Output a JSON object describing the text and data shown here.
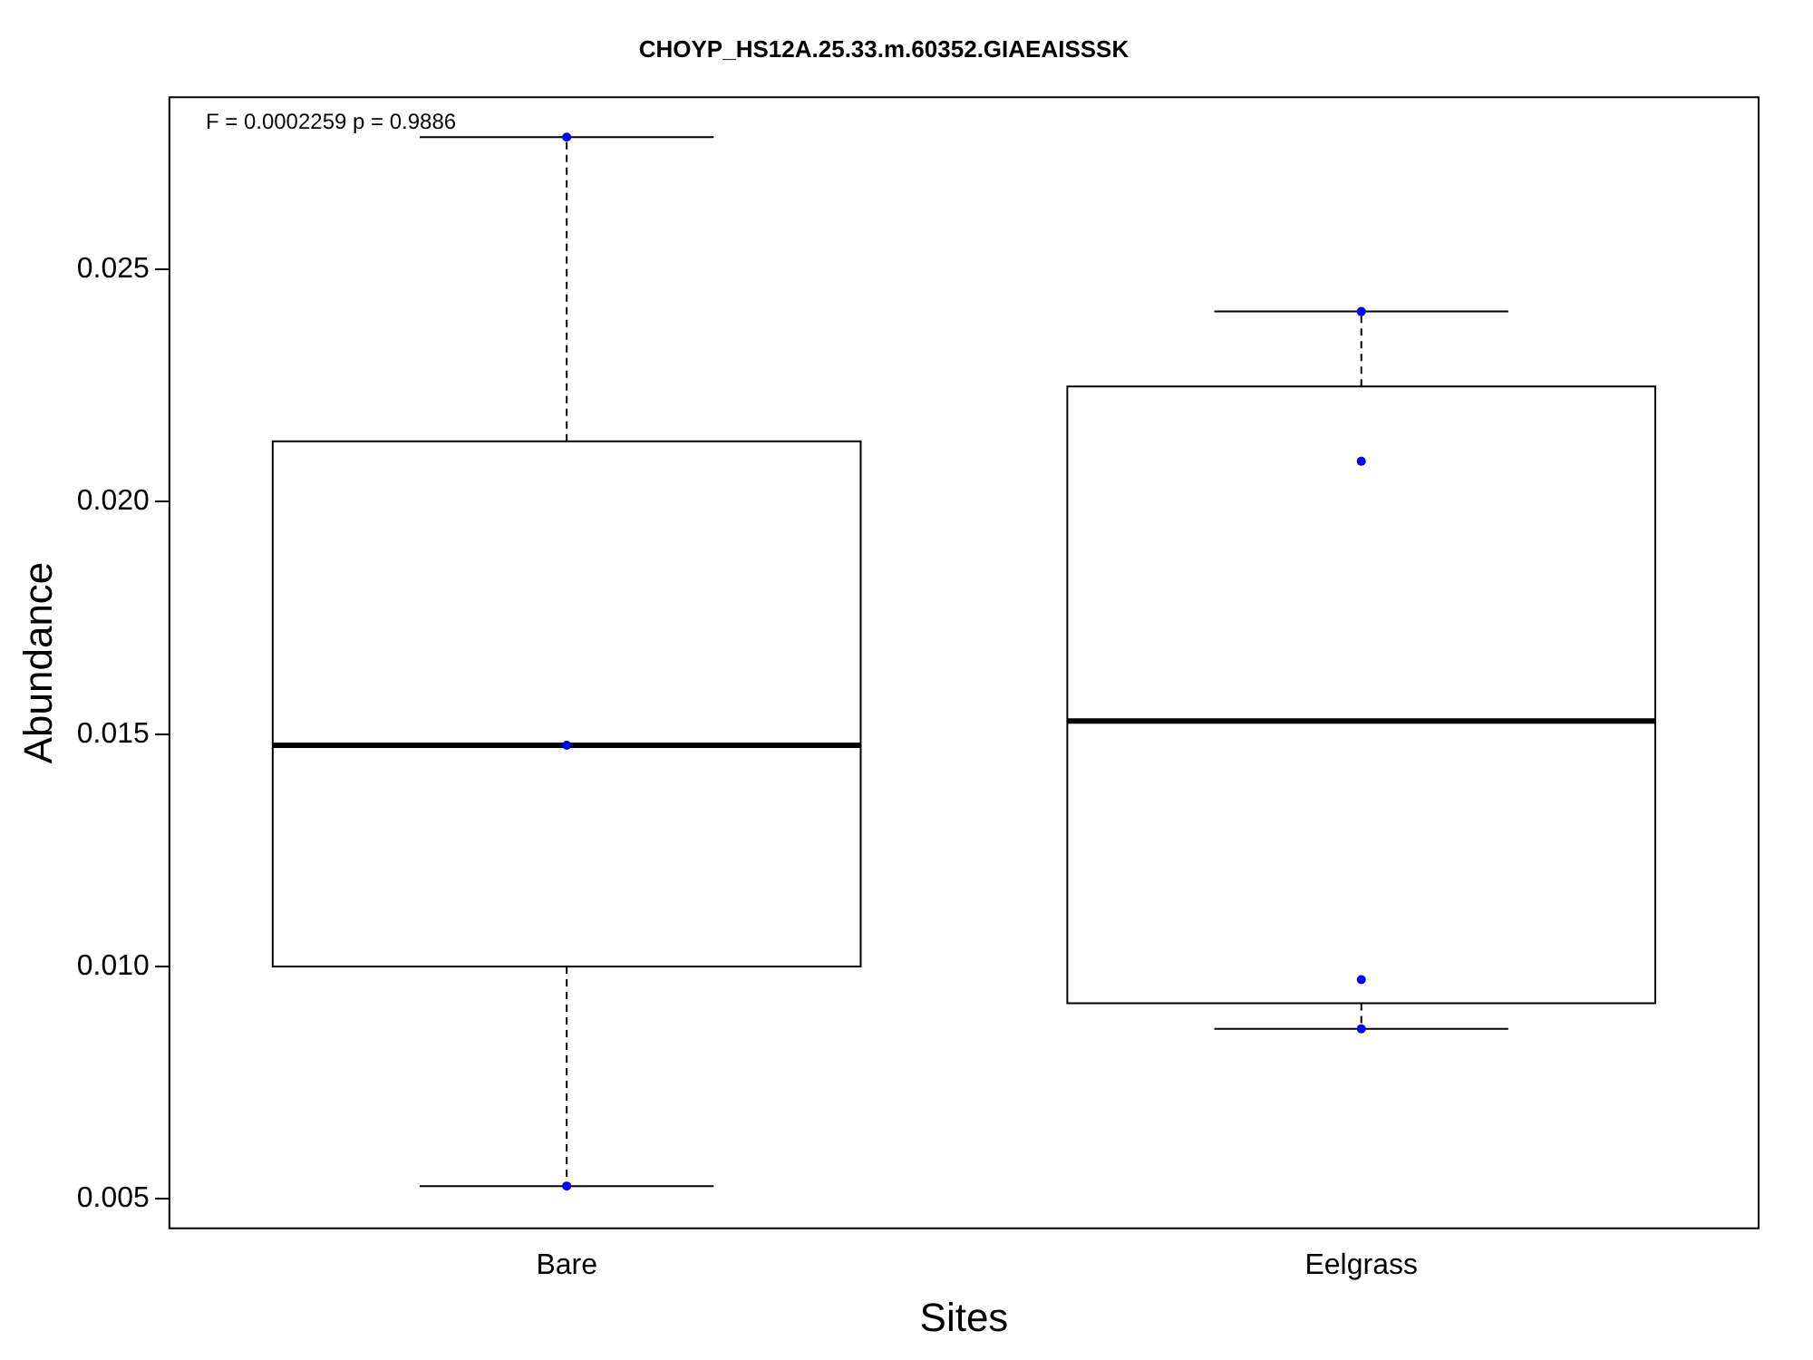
{
  "chart_data": {
    "type": "box",
    "title": "CHOYP_HS12A.25.33.m.60352.GIAEAISSSK",
    "xlabel": "Sites",
    "ylabel": "Abundance",
    "categories": [
      "Bare",
      "Eelgrass"
    ],
    "boxes": [
      {
        "low": 0.00528,
        "q1": 0.01,
        "median": 0.01476,
        "q3": 0.0213,
        "high": 0.02784
      },
      {
        "low": 0.00866,
        "q1": 0.00921,
        "median": 0.01528,
        "q3": 0.02248,
        "high": 0.02409
      }
    ],
    "series": [
      {
        "type": "scatter",
        "color": "#0000ff",
        "x": [
          "Bare",
          "Bare",
          "Bare",
          "Eelgrass",
          "Eelgrass",
          "Eelgrass",
          "Eelgrass"
        ],
        "values": [
          0.02784,
          0.01476,
          0.00528,
          0.02409,
          0.02087,
          0.00972,
          0.00866
        ]
      }
    ],
    "ylim": [
      0.00437,
      0.0287
    ],
    "yticks": [
      0.005,
      {
        "value": 0.01,
        "label": "0.010"
      },
      0.015,
      {
        "value": 0.02,
        "label": "0.020"
      },
      0.025
    ],
    "annotations": [
      "F = 0.0002259 p = 0.9886"
    ],
    "grid": false,
    "legend": false
  }
}
